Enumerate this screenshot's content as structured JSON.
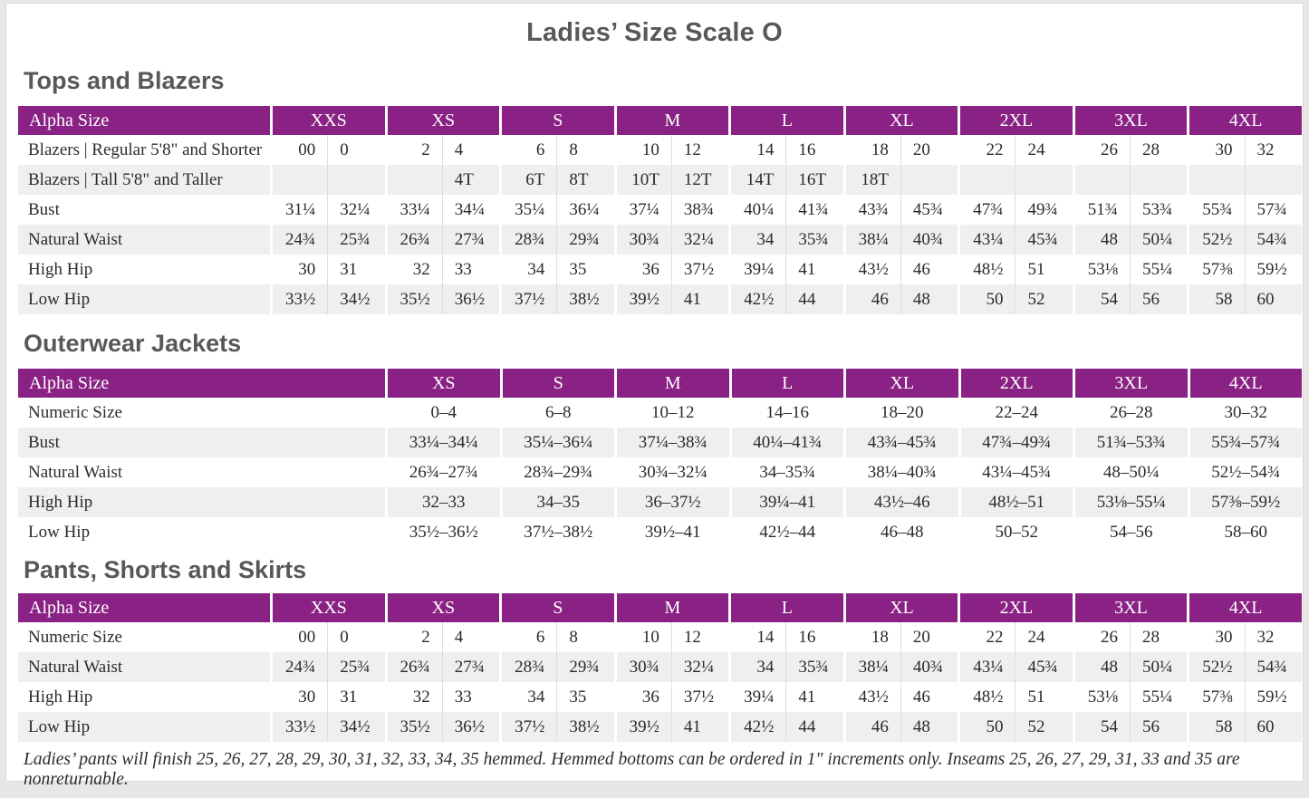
{
  "page": {
    "title": "Ladies’ Size Scale O",
    "footnote": "Ladies’ pants will finish 25, 26, 27, 28, 29, 30, 31, 32, 33, 34, 35 hemmed. Hemmed bottoms can be ordered in 1″ increments only. Inseams 25, 26, 27, 29, 31, 33 and 35 are nonreturnable."
  },
  "colors": {
    "header_purple": "#8a2184",
    "stripe_gray": "#f1efee",
    "heading_gray": "#58585a",
    "text_ink": "#2d2b29"
  },
  "tables": [
    {
      "section_title": "Tops and Blazers",
      "header_label": "Alpha Size",
      "split_columns": true,
      "sizes": [
        "XXS",
        "XS",
        "S",
        "M",
        "L",
        "XL",
        "2XL",
        "3XL",
        "4XL"
      ],
      "rows": [
        {
          "label": "Blazers | Regular 5'8\" and Shorter",
          "values": [
            [
              "00",
              "0"
            ],
            [
              "2",
              "4"
            ],
            [
              "6",
              "8"
            ],
            [
              "10",
              "12"
            ],
            [
              "14",
              "16"
            ],
            [
              "18",
              "20"
            ],
            [
              "22",
              "24"
            ],
            [
              "26",
              "28"
            ],
            [
              "30",
              "32"
            ]
          ]
        },
        {
          "label": "Blazers | Tall 5'8\" and Taller",
          "values": [
            [
              "",
              ""
            ],
            [
              "",
              "4T"
            ],
            [
              "6T",
              "8T"
            ],
            [
              "10T",
              "12T"
            ],
            [
              "14T",
              "16T"
            ],
            [
              "18T",
              ""
            ],
            [
              "",
              ""
            ],
            [
              "",
              ""
            ],
            [
              "",
              ""
            ]
          ]
        },
        {
          "label": "Bust",
          "values": [
            [
              "31¼",
              "32¼"
            ],
            [
              "33¼",
              "34¼"
            ],
            [
              "35¼",
              "36¼"
            ],
            [
              "37¼",
              "38¾"
            ],
            [
              "40¼",
              "41¾"
            ],
            [
              "43¾",
              "45¾"
            ],
            [
              "47¾",
              "49¾"
            ],
            [
              "51¾",
              "53¾"
            ],
            [
              "55¾",
              "57¾"
            ]
          ]
        },
        {
          "label": "Natural Waist",
          "values": [
            [
              "24¾",
              "25¾"
            ],
            [
              "26¾",
              "27¾"
            ],
            [
              "28¾",
              "29¾"
            ],
            [
              "30¾",
              "32¼"
            ],
            [
              "34",
              "35¾"
            ],
            [
              "38¼",
              "40¾"
            ],
            [
              "43¼",
              "45¾"
            ],
            [
              "48",
              "50¼"
            ],
            [
              "52½",
              "54¾"
            ]
          ]
        },
        {
          "label": "High Hip",
          "values": [
            [
              "30",
              "31"
            ],
            [
              "32",
              "33"
            ],
            [
              "34",
              "35"
            ],
            [
              "36",
              "37½"
            ],
            [
              "39¼",
              "41"
            ],
            [
              "43½",
              "46"
            ],
            [
              "48½",
              "51"
            ],
            [
              "53⅛",
              "55¼"
            ],
            [
              "57⅜",
              "59½"
            ]
          ]
        },
        {
          "label": "Low Hip",
          "values": [
            [
              "33½",
              "34½"
            ],
            [
              "35½",
              "36½"
            ],
            [
              "37½",
              "38½"
            ],
            [
              "39½",
              "41"
            ],
            [
              "42½",
              "44"
            ],
            [
              "46",
              "48"
            ],
            [
              "50",
              "52"
            ],
            [
              "54",
              "56"
            ],
            [
              "58",
              "60"
            ]
          ]
        }
      ]
    },
    {
      "section_title": "Outerwear Jackets",
      "header_label": "Alpha Size",
      "split_columns": false,
      "sizes": [
        "XS",
        "S",
        "M",
        "L",
        "XL",
        "2XL",
        "3XL",
        "4XL"
      ],
      "rows": [
        {
          "label": "Numeric Size",
          "values": [
            "0–4",
            "6–8",
            "10–12",
            "14–16",
            "18–20",
            "22–24",
            "26–28",
            "30–32"
          ]
        },
        {
          "label": "Bust",
          "values": [
            "33¼–34¼",
            "35¼–36¼",
            "37¼–38¾",
            "40¼–41¾",
            "43¾–45¾",
            "47¾–49¾",
            "51¾–53¾",
            "55¾–57¾"
          ]
        },
        {
          "label": "Natural Waist",
          "values": [
            "26¾–27¾",
            "28¾–29¾",
            "30¾–32¼",
            "34–35¾",
            "38¼–40¾",
            "43¼–45¾",
            "48–50¼",
            "52½–54¾"
          ]
        },
        {
          "label": "High Hip",
          "values": [
            "32–33",
            "34–35",
            "36–37½",
            "39¼–41",
            "43½–46",
            "48½–51",
            "53⅛–55¼",
            "57⅜–59½"
          ]
        },
        {
          "label": "Low Hip",
          "values": [
            "35½–36½",
            "37½–38½",
            "39½–41",
            "42½–44",
            "46–48",
            "50–52",
            "54–56",
            "58–60"
          ]
        }
      ]
    },
    {
      "section_title": "Pants, Shorts and Skirts",
      "header_label": "Alpha Size",
      "split_columns": true,
      "sizes": [
        "XXS",
        "XS",
        "S",
        "M",
        "L",
        "XL",
        "2XL",
        "3XL",
        "4XL"
      ],
      "rows": [
        {
          "label": "Numeric Size",
          "values": [
            [
              "00",
              "0"
            ],
            [
              "2",
              "4"
            ],
            [
              "6",
              "8"
            ],
            [
              "10",
              "12"
            ],
            [
              "14",
              "16"
            ],
            [
              "18",
              "20"
            ],
            [
              "22",
              "24"
            ],
            [
              "26",
              "28"
            ],
            [
              "30",
              "32"
            ]
          ]
        },
        {
          "label": "Natural Waist",
          "values": [
            [
              "24¾",
              "25¾"
            ],
            [
              "26¾",
              "27¾"
            ],
            [
              "28¾",
              "29¾"
            ],
            [
              "30¾",
              "32¼"
            ],
            [
              "34",
              "35¾"
            ],
            [
              "38¼",
              "40¾"
            ],
            [
              "43¼",
              "45¾"
            ],
            [
              "48",
              "50¼"
            ],
            [
              "52½",
              "54¾"
            ]
          ]
        },
        {
          "label": "High Hip",
          "values": [
            [
              "30",
              "31"
            ],
            [
              "32",
              "33"
            ],
            [
              "34",
              "35"
            ],
            [
              "36",
              "37½"
            ],
            [
              "39¼",
              "41"
            ],
            [
              "43½",
              "46"
            ],
            [
              "48½",
              "51"
            ],
            [
              "53⅛",
              "55¼"
            ],
            [
              "57⅜",
              "59½"
            ]
          ]
        },
        {
          "label": "Low Hip",
          "values": [
            [
              "33½",
              "34½"
            ],
            [
              "35½",
              "36½"
            ],
            [
              "37½",
              "38½"
            ],
            [
              "39½",
              "41"
            ],
            [
              "42½",
              "44"
            ],
            [
              "46",
              "48"
            ],
            [
              "50",
              "52"
            ],
            [
              "54",
              "56"
            ],
            [
              "58",
              "60"
            ]
          ]
        }
      ]
    }
  ]
}
